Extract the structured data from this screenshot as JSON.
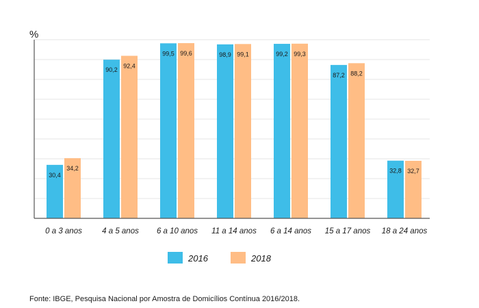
{
  "chart_data": {
    "type": "bar",
    "y_unit_label": "%",
    "ylim": [
      0,
      100
    ],
    "grid": true,
    "legend_position": "bottom",
    "categories": [
      "0 a 3 anos",
      "4 a 5 anos",
      "6 a 10 anos",
      "11 a 14 anos",
      "6 a 14 anos",
      "15 a 17 anos",
      "18 a 24 anos"
    ],
    "series": [
      {
        "name": "2016",
        "color": "#3ebde8",
        "values": [
          30.4,
          90.2,
          99.5,
          98.9,
          99.2,
          87.2,
          32.8
        ],
        "labels": [
          "30,4",
          "90,2",
          "99,5",
          "98,9",
          "99,2",
          "87,2",
          "32,8"
        ]
      },
      {
        "name": "2018",
        "color": "#ffbd85",
        "values": [
          34.2,
          92.4,
          99.6,
          99.1,
          99.3,
          88.2,
          32.7
        ],
        "labels": [
          "34,2",
          "92,4",
          "99,6",
          "99,1",
          "99,3",
          "88,2",
          "32,7"
        ]
      }
    ]
  },
  "source_text": "Fonte: IBGE, Pesquisa Nacional por Amostra de Domicílios Contínua 2016/2018."
}
